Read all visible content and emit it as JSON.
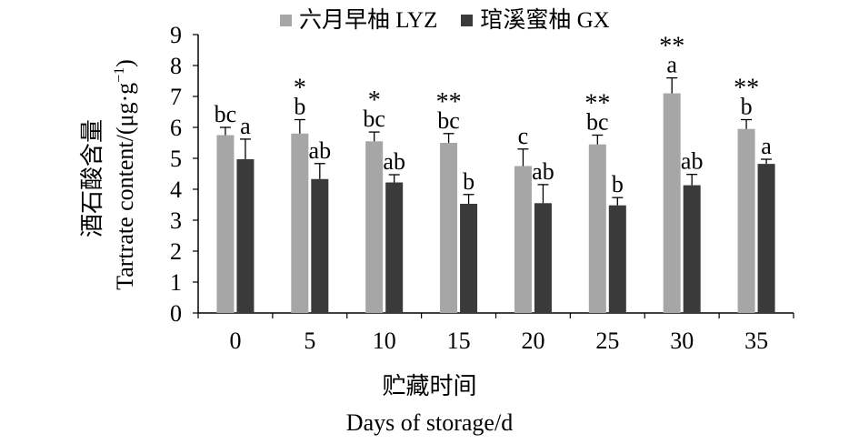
{
  "chart_data": {
    "type": "bar",
    "categories": [
      "0",
      "5",
      "10",
      "15",
      "20",
      "25",
      "30",
      "35"
    ],
    "xlabel_cn": "贮藏时间",
    "xlabel_en": "Days of storage/d",
    "ylabel_cn": "酒石酸含量",
    "ylabel_en": "Tartrate content/(μg·g",
    "ylabel_en_sup": "−1",
    "ylabel_en_close": ")",
    "ylim": [
      0,
      9
    ],
    "yticks": [
      0,
      1,
      2,
      3,
      4,
      5,
      6,
      7,
      8,
      9
    ],
    "grid": false,
    "legend_position": "top",
    "series": [
      {
        "name": "六月早柚 LYZ",
        "color": "#a6a6a6",
        "values": [
          5.75,
          5.8,
          5.55,
          5.5,
          4.75,
          5.45,
          7.1,
          5.95
        ],
        "errors": [
          0.25,
          0.45,
          0.3,
          0.3,
          0.55,
          0.3,
          0.5,
          0.3
        ],
        "letters": [
          "bc",
          "b",
          "bc",
          "bc",
          "c",
          "bc",
          "a",
          "b"
        ]
      },
      {
        "name": "琯溪蜜柚 GX",
        "color": "#3a3a3a",
        "values": [
          4.97,
          4.33,
          4.22,
          3.53,
          3.55,
          3.48,
          4.13,
          4.82
        ],
        "errors": [
          0.65,
          0.5,
          0.25,
          0.3,
          0.6,
          0.25,
          0.35,
          0.15
        ],
        "letters": [
          "a",
          "ab",
          "ab",
          "b",
          "ab",
          "b",
          "ab",
          "a"
        ]
      }
    ],
    "significance": [
      "",
      "*",
      "*",
      "**",
      "",
      "**",
      "**",
      "**"
    ]
  }
}
